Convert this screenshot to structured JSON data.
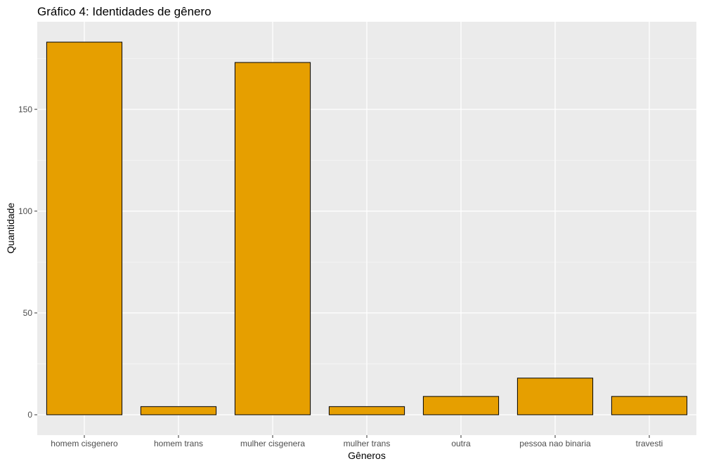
{
  "chart_data": {
    "type": "bar",
    "title": "Gráfico 4: Identidades de gênero",
    "xlabel": "Gêneros",
    "ylabel": "Quantidade",
    "categories": [
      "homem cisgenero",
      "homem trans",
      "mulher cisgenera",
      "mulher trans",
      "outra",
      "pessoa nao binaria",
      "travesti"
    ],
    "values": [
      183,
      4,
      173,
      4,
      9,
      18,
      9
    ],
    "ylim": [
      -10,
      193
    ],
    "yticks": [
      0,
      50,
      100,
      150
    ],
    "ytick_labels": [
      "0",
      "50",
      "100",
      "150"
    ],
    "grid": true,
    "legend": "none",
    "colors": {
      "bar_fill": "#E69F00",
      "bar_stroke": "#000000",
      "panel_background": "#EBEBEB",
      "grid_major": "#FFFFFF",
      "grid_minor": "#F5F5F5",
      "tick_text": "#4D4D4D"
    }
  }
}
